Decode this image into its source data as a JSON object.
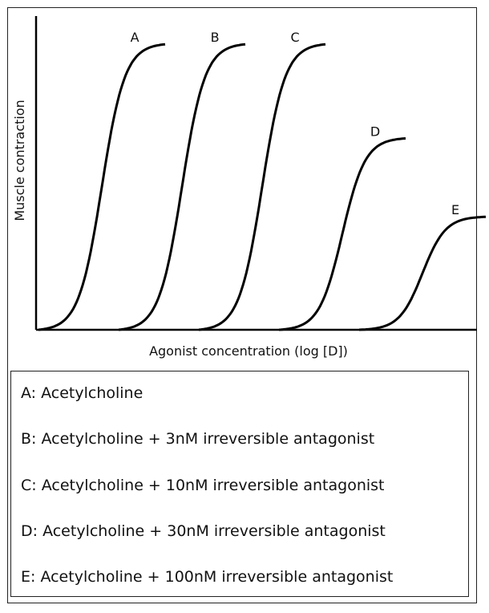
{
  "chart_data": {
    "type": "line",
    "xlabel": "Agonist concentration (log [D])",
    "ylabel": "Muscle contraction",
    "ylim": [
      0,
      100
    ],
    "grid": false,
    "series": [
      {
        "name": "A",
        "onset": 0.0,
        "max": 91
      },
      {
        "name": "B",
        "onset": 1.0,
        "max": 91
      },
      {
        "name": "C",
        "onset": 2.0,
        "max": 91
      },
      {
        "name": "D",
        "onset": 3.0,
        "max": 61
      },
      {
        "name": "E",
        "onset": 4.0,
        "max": 36
      }
    ]
  },
  "legend": {
    "items": [
      {
        "label": "A: Acetylcholine"
      },
      {
        "label": "B: Acetylcholine + 3nM irreversible antagonist"
      },
      {
        "label": "C: Acetylcholine + 10nM irreversible antagonist"
      },
      {
        "label": "D: Acetylcholine + 30nM irreversible antagonist"
      },
      {
        "label": "E: Acetylcholine + 100nM irreversible antagonist"
      }
    ]
  }
}
